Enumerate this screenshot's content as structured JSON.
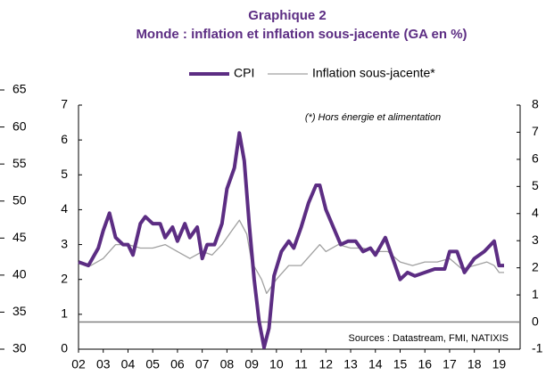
{
  "chart_data": {
    "type": "line",
    "title": "Graphique 2",
    "subtitle": "Monde : inflation et inflation sous-jacente (GA en %)",
    "annotations": [
      "(*) Hors énergie et alimentation",
      "Sources : Datastream, FMI, NATIXIS"
    ],
    "series": [
      {
        "name": "CPI",
        "color": "#5c2d83",
        "x": [
          2002.0,
          2002.4,
          2002.8,
          2003.0,
          2003.25,
          2003.5,
          2003.8,
          2004.0,
          2004.2,
          2004.5,
          2004.7,
          2005.0,
          2005.3,
          2005.5,
          2005.8,
          2006.0,
          2006.3,
          2006.5,
          2006.8,
          2007.0,
          2007.2,
          2007.5,
          2007.8,
          2008.0,
          2008.3,
          2008.5,
          2008.7,
          2008.9,
          2009.1,
          2009.3,
          2009.5,
          2009.7,
          2009.9,
          2010.2,
          2010.5,
          2010.7,
          2011.0,
          2011.3,
          2011.6,
          2011.75,
          2012.0,
          2012.3,
          2012.6,
          2012.9,
          2013.2,
          2013.5,
          2013.8,
          2014.0,
          2014.4,
          2014.7,
          2015.0,
          2015.3,
          2015.6,
          2016.0,
          2016.4,
          2016.8,
          2017.0,
          2017.3,
          2017.6,
          2018.0,
          2018.4,
          2018.8,
          2019.0,
          2019.2
        ],
        "values": [
          2.5,
          2.4,
          2.9,
          3.4,
          3.9,
          3.2,
          3.0,
          3.0,
          2.7,
          3.6,
          3.8,
          3.6,
          3.6,
          3.2,
          3.5,
          3.1,
          3.6,
          3.2,
          3.5,
          2.6,
          3.0,
          3.0,
          3.6,
          4.6,
          5.2,
          6.2,
          5.4,
          3.6,
          2.0,
          0.8,
          0.05,
          0.6,
          2.1,
          2.8,
          3.1,
          2.9,
          3.5,
          4.2,
          4.7,
          4.7,
          4.0,
          3.5,
          3.0,
          3.1,
          3.1,
          2.8,
          2.9,
          2.7,
          3.2,
          2.6,
          2.0,
          2.2,
          2.1,
          2.2,
          2.3,
          2.3,
          2.8,
          2.8,
          2.2,
          2.6,
          2.8,
          3.1,
          2.4,
          2.4
        ]
      },
      {
        "name": "Inflation sous-jacente*",
        "color": "#a0a0a0",
        "x": [
          2002.0,
          2002.5,
          2003.0,
          2003.5,
          2004.0,
          2004.5,
          2005.0,
          2005.5,
          2006.0,
          2006.5,
          2007.0,
          2007.4,
          2007.8,
          2008.2,
          2008.5,
          2008.8,
          2009.0,
          2009.4,
          2009.6,
          2010.0,
          2010.5,
          2011.0,
          2011.5,
          2011.75,
          2012.0,
          2012.5,
          2013.0,
          2013.5,
          2014.0,
          2014.5,
          2015.0,
          2015.5,
          2016.0,
          2016.5,
          2017.0,
          2017.5,
          2018.0,
          2018.5,
          2018.8,
          2019.0,
          2019.2
        ],
        "values": [
          2.5,
          2.4,
          2.6,
          3.0,
          3.0,
          2.9,
          2.9,
          3.0,
          2.8,
          2.6,
          2.8,
          2.7,
          3.0,
          3.4,
          3.7,
          3.3,
          2.5,
          2.0,
          1.6,
          2.0,
          2.4,
          2.4,
          2.8,
          3.0,
          2.8,
          3.0,
          2.9,
          2.9,
          2.8,
          2.8,
          2.5,
          2.4,
          2.5,
          2.5,
          2.6,
          2.3,
          2.4,
          2.5,
          2.4,
          2.2,
          2.2
        ]
      }
    ],
    "xlim": [
      2002,
      2019.85
    ],
    "xticks": [
      {
        "value": 2002,
        "label": "02"
      },
      {
        "value": 2003,
        "label": "03"
      },
      {
        "value": 2004,
        "label": "04"
      },
      {
        "value": 2005,
        "label": "05"
      },
      {
        "value": 2006,
        "label": "06"
      },
      {
        "value": 2007,
        "label": "07"
      },
      {
        "value": 2008,
        "label": "08"
      },
      {
        "value": 2009,
        "label": "09"
      },
      {
        "value": 2010,
        "label": "10"
      },
      {
        "value": 2011,
        "label": "11"
      },
      {
        "value": 2012,
        "label": "12"
      },
      {
        "value": 2013,
        "label": "13"
      },
      {
        "value": 2014,
        "label": "14"
      },
      {
        "value": 2015,
        "label": "15"
      },
      {
        "value": 2016,
        "label": "16"
      },
      {
        "value": 2017,
        "label": "17"
      },
      {
        "value": 2018,
        "label": "18"
      },
      {
        "value": 2019,
        "label": "19"
      }
    ],
    "ylim": [
      0,
      7
    ],
    "yticks": [
      0,
      1,
      2,
      3,
      4,
      5,
      6,
      7
    ],
    "y2lim": [
      -1,
      8
    ],
    "y2ticks": [
      -1,
      0,
      1,
      2,
      3,
      4,
      5,
      6,
      7,
      8
    ],
    "y3lim": [
      30,
      65
    ],
    "y3ticks": [
      30,
      35,
      40,
      45,
      50,
      55,
      60,
      65
    ],
    "legend": "top"
  }
}
